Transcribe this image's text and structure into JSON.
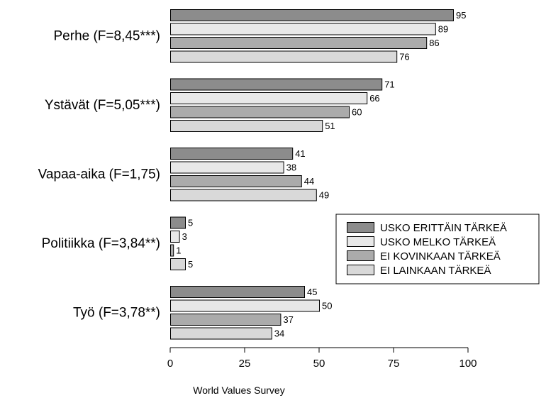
{
  "chart_data": {
    "type": "bar",
    "orientation": "horizontal",
    "categories": [
      "Perhe (F=8,45***)",
      "Ystävät (F=5,05***)",
      "Vapaa-aika (F=1,75)",
      "Politiikka (F=3,84**)",
      "Työ (F=3,78**)"
    ],
    "series": [
      {
        "name": "USKO ERITTÄIN TÄRKEÄ",
        "color": "#8c8c8c",
        "values": [
          95,
          71,
          41,
          5,
          45
        ]
      },
      {
        "name": "USKO MELKO TÄRKEÄ",
        "color": "#e8e8e8",
        "values": [
          89,
          66,
          38,
          3,
          50
        ]
      },
      {
        "name": "EI KOVINKAAN TÄRKEÄ",
        "color": "#ababab",
        "values": [
          86,
          60,
          44,
          1,
          37
        ]
      },
      {
        "name": "EI LAINKAAN TÄRKEÄ",
        "color": "#d9d9d9",
        "values": [
          76,
          51,
          49,
          5,
          34
        ]
      }
    ],
    "xlim": [
      0,
      100
    ],
    "xticks": [
      0,
      25,
      50,
      75,
      100
    ],
    "xlabel": "World Values Survey",
    "ylabel": "",
    "title": "",
    "legend_position": "right",
    "grid": false
  }
}
